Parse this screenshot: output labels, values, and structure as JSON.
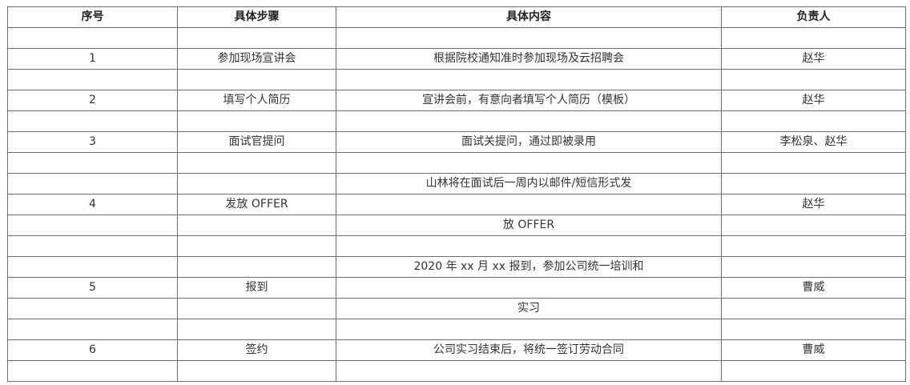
{
  "headers": [
    "序号",
    "具体步骤",
    "具体内容",
    "负责人"
  ],
  "rows": [
    [
      "",
      "",
      "",
      ""
    ],
    [
      "1",
      "参加现场宣讲会",
      "根据院校通知准时参加现场及云招聘会",
      "赵华"
    ],
    [
      "",
      "",
      "",
      ""
    ],
    [
      "2",
      "填写个人简历",
      "宣讲会前，有意向者填写个人简历（模板）",
      "赵华"
    ],
    [
      "",
      "",
      "",
      ""
    ],
    [
      "3",
      "面试官提问",
      "面试关提问，通过即被录用",
      "李松泉、赵华"
    ],
    [
      "",
      "",
      "",
      ""
    ],
    [
      "",
      "",
      "山林将在面试后一周内以邮件/短信形式发",
      ""
    ],
    [
      "4",
      "发放 OFFER",
      "",
      "赵华"
    ],
    [
      "",
      "",
      "放 OFFER",
      ""
    ],
    [
      "",
      "",
      "",
      ""
    ],
    [
      "",
      "",
      "2020 年 xx 月 xx 报到，参加公司统一培训和",
      ""
    ],
    [
      "5",
      "报到",
      "",
      "曹威"
    ],
    [
      "",
      "",
      "实习",
      ""
    ],
    [
      "",
      "",
      "",
      ""
    ],
    [
      "6",
      "签约",
      "公司实习结束后，将统一签订劳动合同",
      "曹威"
    ],
    [
      "",
      "",
      "",
      ""
    ]
  ]
}
